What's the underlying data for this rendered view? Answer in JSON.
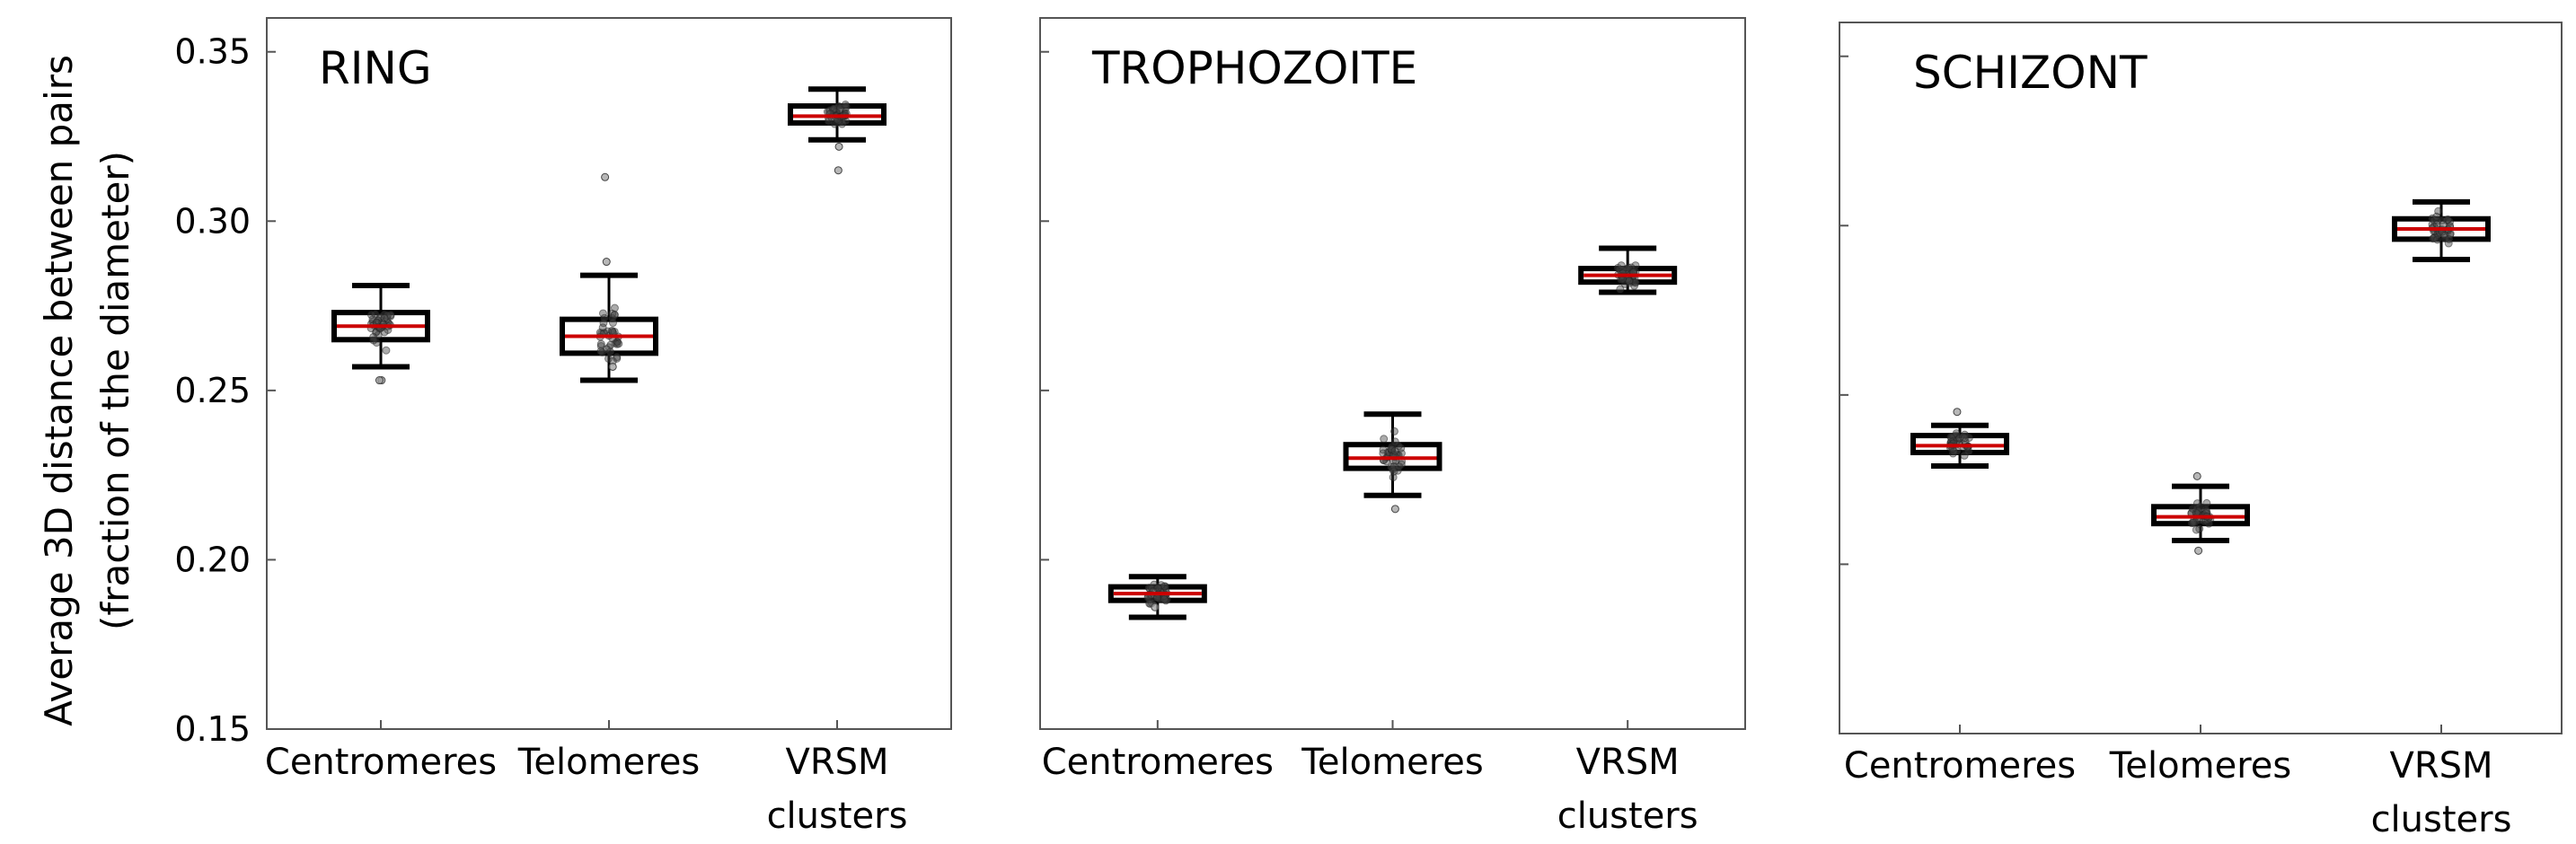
{
  "y_axis": {
    "label_lines": [
      "Average 3D distance between pairs",
      "(fraction of the diameter)"
    ],
    "tick_labels": [
      "0.35",
      "0.30",
      "0.25",
      "0.20",
      "0.15"
    ]
  },
  "colors": {
    "median": "#cc0000",
    "box": "#000000",
    "points": "#444444",
    "frame": "#555555"
  },
  "chart_data": [
    {
      "type": "box",
      "title": "RING",
      "categories": [
        "Centromeres",
        "Telomeres",
        "VRSM clusters"
      ],
      "ylim": [
        0.15,
        0.36
      ],
      "ylabel": "Average 3D distance between pairs (fraction of the diameter)",
      "grid": false,
      "boxes": [
        {
          "category": "Centromeres",
          "whisker_low": 0.257,
          "q1": 0.265,
          "median": 0.269,
          "q3": 0.273,
          "whisker_high": 0.281,
          "outliers": [
            0.253,
            0.253
          ]
        },
        {
          "category": "Telomeres",
          "whisker_low": 0.253,
          "q1": 0.261,
          "median": 0.266,
          "q3": 0.271,
          "whisker_high": 0.284,
          "outliers": [
            0.313,
            0.288,
            0.257
          ]
        },
        {
          "category": "VRSM clusters",
          "whisker_low": 0.324,
          "q1": 0.329,
          "median": 0.331,
          "q3": 0.334,
          "whisker_high": 0.339,
          "outliers": [
            0.315,
            0.322
          ]
        }
      ]
    },
    {
      "type": "box",
      "title": "TROPHOZOITE",
      "categories": [
        "Centromeres",
        "Telomeres",
        "VRSM clusters"
      ],
      "ylim": [
        0.15,
        0.36
      ],
      "grid": false,
      "boxes": [
        {
          "category": "Centromeres",
          "whisker_low": 0.183,
          "q1": 0.188,
          "median": 0.19,
          "q3": 0.192,
          "whisker_high": 0.195,
          "outliers": [
            0.186
          ]
        },
        {
          "category": "Telomeres",
          "whisker_low": 0.219,
          "q1": 0.227,
          "median": 0.23,
          "q3": 0.234,
          "whisker_high": 0.243,
          "outliers": [
            0.215
          ]
        },
        {
          "category": "VRSM clusters",
          "whisker_low": 0.279,
          "q1": 0.282,
          "median": 0.284,
          "q3": 0.286,
          "whisker_high": 0.292,
          "outliers": []
        }
      ]
    },
    {
      "type": "box",
      "title": "SCHIZONT",
      "categories": [
        "Centromeres",
        "Telomeres",
        "VRSM clusters"
      ],
      "ylim": [
        0.15,
        0.36
      ],
      "grid": false,
      "boxes": [
        {
          "category": "Centromeres",
          "whisker_low": 0.229,
          "q1": 0.233,
          "median": 0.235,
          "q3": 0.238,
          "whisker_high": 0.241,
          "outliers": [
            0.245
          ]
        },
        {
          "category": "Telomeres",
          "whisker_low": 0.207,
          "q1": 0.212,
          "median": 0.214,
          "q3": 0.217,
          "whisker_high": 0.223,
          "outliers": [
            0.204,
            0.226
          ]
        },
        {
          "category": "VRSM clusters",
          "whisker_low": 0.29,
          "q1": 0.296,
          "median": 0.299,
          "q3": 0.302,
          "whisker_high": 0.307,
          "outliers": []
        }
      ]
    }
  ]
}
